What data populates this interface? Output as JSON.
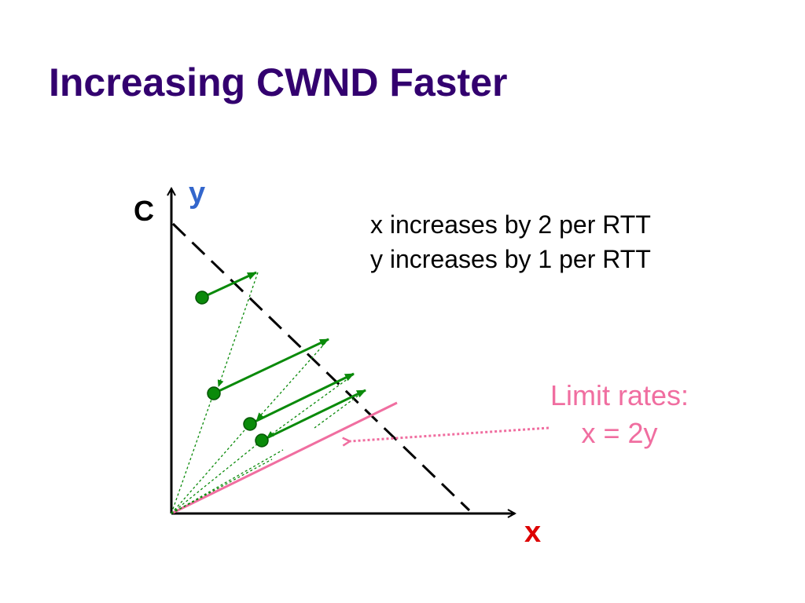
{
  "title": "Increasing CWND Faster",
  "labels": {
    "capacity": "C",
    "y_axis": "y",
    "x_axis": "x"
  },
  "notes": {
    "line1": "x increases by 2 per RTT",
    "line2": "y increases by 1 per RTT"
  },
  "limit": {
    "line1": "Limit rates:",
    "line2": "x = 2y"
  },
  "colors": {
    "title": "#33006f",
    "y_label": "#3366cc",
    "x_label": "#dd0000",
    "green": "#0a8a0a",
    "pink": "#f06ea0",
    "axes": "#000000"
  }
}
